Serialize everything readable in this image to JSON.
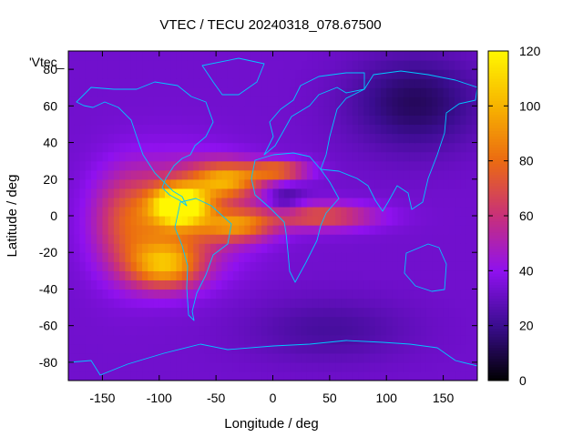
{
  "chart_data": {
    "type": "heatmap",
    "title": "VTEC / TECU 20240318_078.67500",
    "xlabel": "Longitude / deg",
    "ylabel": "Latitude / deg",
    "legend_key": "'Vtec_",
    "xlim": [
      -180,
      180
    ],
    "ylim": [
      -90,
      90
    ],
    "xticks": [
      -150,
      -100,
      -50,
      0,
      50,
      100,
      150
    ],
    "yticks": [
      -80,
      -60,
      -40,
      -20,
      0,
      20,
      40,
      60,
      80
    ],
    "colorbar": {
      "range": [
        0,
        120
      ],
      "ticks": [
        0,
        20,
        40,
        60,
        80,
        100,
        120
      ],
      "stops": [
        "#000000",
        "#3a0d8f",
        "#8f11ef",
        "#c8307a",
        "#eb6a12",
        "#f7b300",
        "#fff700"
      ]
    },
    "background_value": 33,
    "features": [
      {
        "lon": -82,
        "lat": 6,
        "slon": 16,
        "slat": 7,
        "amp": 85
      },
      {
        "lon": -85,
        "lat": 0,
        "slon": 38,
        "slat": 20,
        "amp": 40
      },
      {
        "lon": -95,
        "lat": -27,
        "slon": 22,
        "slat": 9,
        "amp": 55
      },
      {
        "lon": -40,
        "lat": 20,
        "slon": 22,
        "slat": 7,
        "amp": 55
      },
      {
        "lon": 5,
        "lat": 25,
        "slon": 18,
        "slat": 4,
        "amp": 45
      },
      {
        "lon": -30,
        "lat": -5,
        "slon": 22,
        "slat": 6,
        "amp": 45
      },
      {
        "lon": 40,
        "lat": 0,
        "slon": 35,
        "slat": 5,
        "amp": 40
      },
      {
        "lon": -130,
        "lat": -5,
        "slon": 20,
        "slat": 20,
        "amp": 25
      },
      {
        "lon": 10,
        "lat": 8,
        "slon": 12,
        "slat": 6,
        "amp": -15
      },
      {
        "lon": 125,
        "lat": 62,
        "slon": 40,
        "slat": 18,
        "amp": -20
      },
      {
        "lon": 50,
        "lat": -62,
        "slon": 50,
        "slat": 12,
        "amp": -10
      }
    ]
  }
}
